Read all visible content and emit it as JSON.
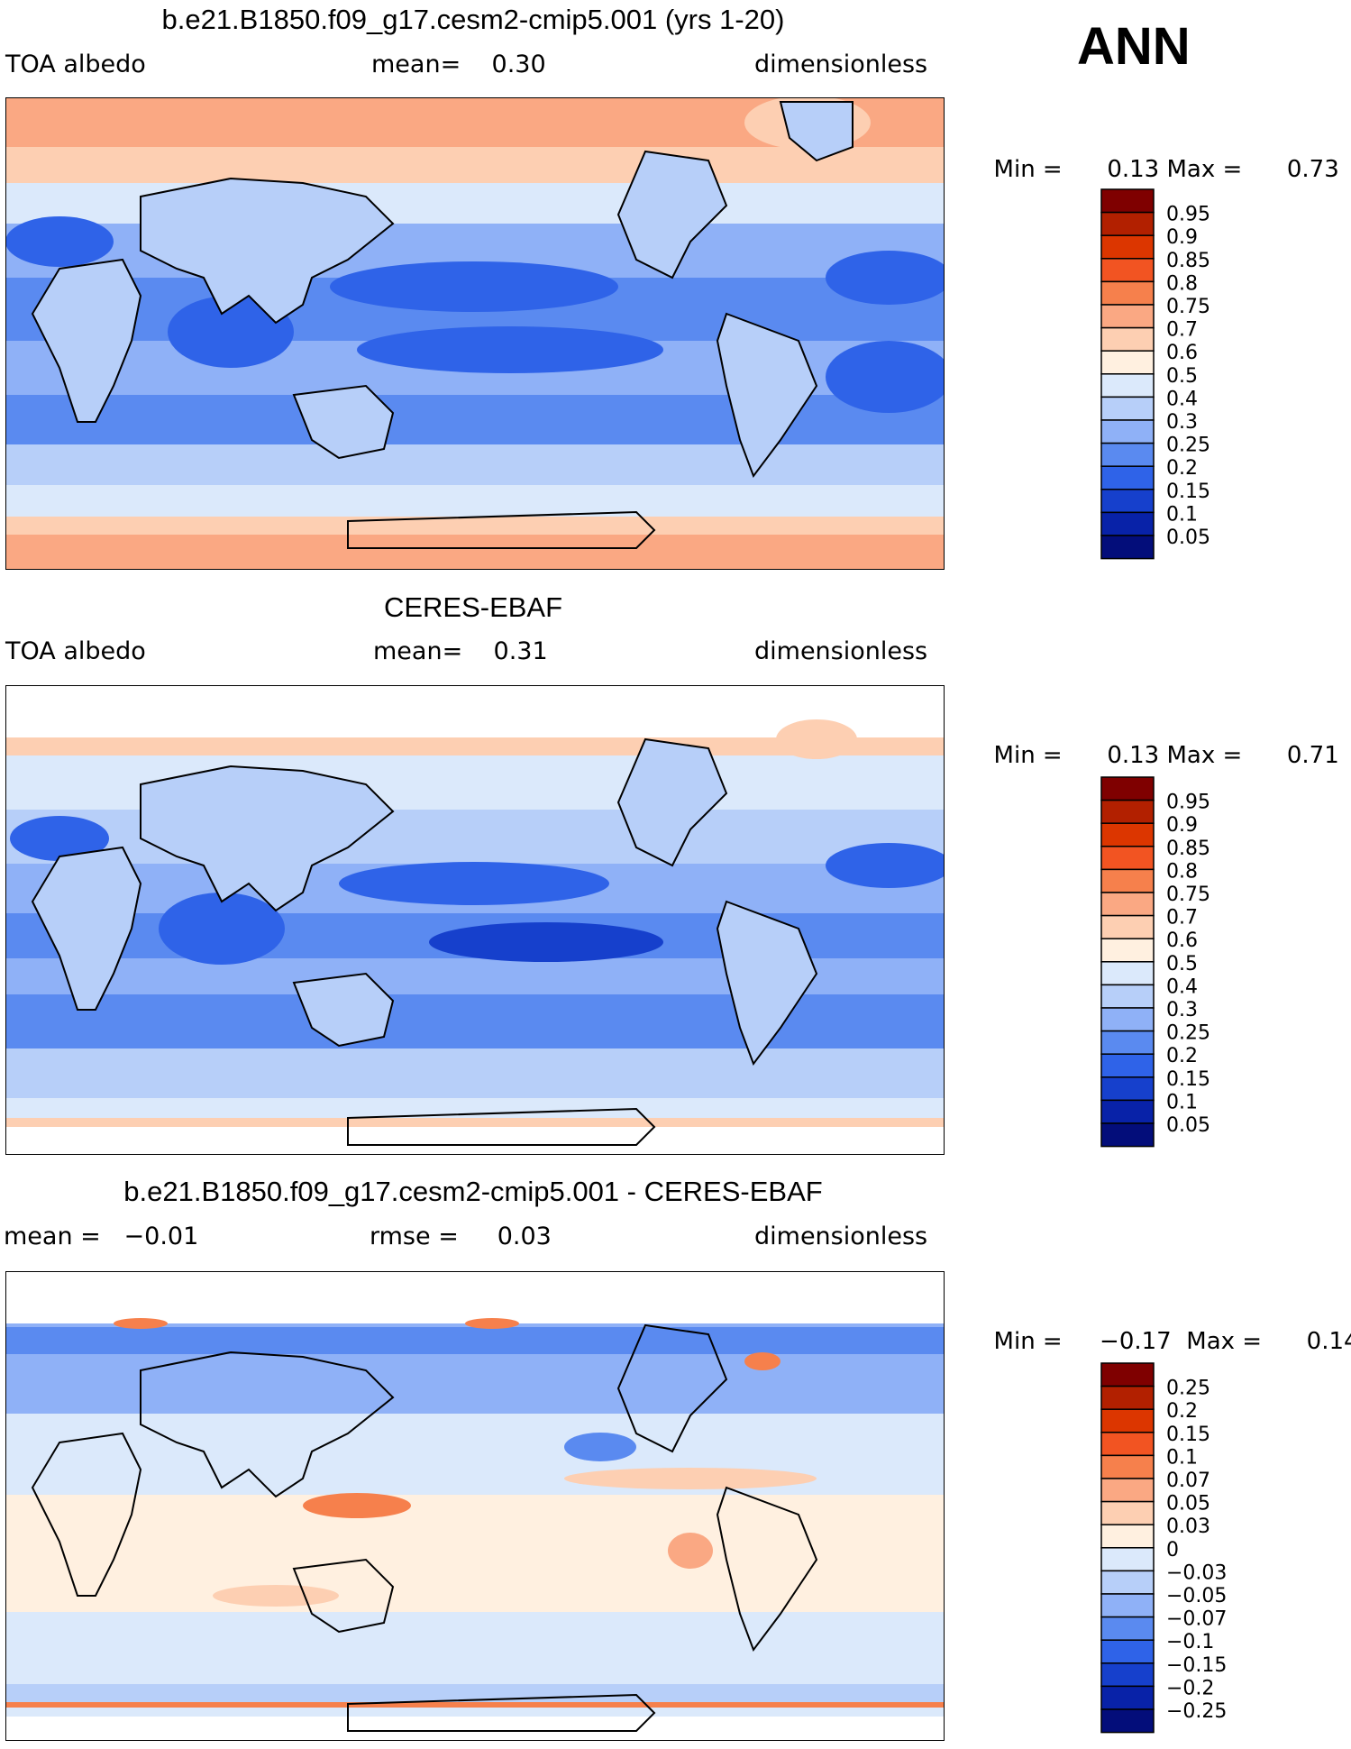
{
  "season": "ANN",
  "panels": [
    {
      "title": "b.e21.B1850.f09_g17.cesm2-cmip5.001 (yrs 1-20)",
      "left_label": "TOA albedo",
      "center_label": "mean=    0.30",
      "right_label": "dimensionless",
      "min_label": "Min =",
      "min_value": "0.13",
      "max_label": "Max =",
      "max_value": "0.73"
    },
    {
      "title": "CERES-EBAF",
      "left_label": "TOA albedo",
      "center_label": "mean=    0.31",
      "right_label": "dimensionless",
      "min_label": "Min =",
      "min_value": "0.13",
      "max_label": "Max =",
      "max_value": "0.71"
    },
    {
      "title": "b.e21.B1850.f09_g17.cesm2-cmip5.001 - CERES-EBAF",
      "left_label": "mean =   −0.01",
      "center_label": "rmse =     0.03",
      "right_label": "dimensionless",
      "min_label": "Min =",
      "min_value": "−0.17",
      "max_label": "Max =",
      "max_value": "0.14"
    }
  ],
  "chart_data": [
    {
      "type": "heatmap",
      "title": "b.e21.B1850.f09_g17.cesm2-cmip5.001 (yrs 1-20)",
      "variable": "TOA albedo",
      "units": "dimensionless",
      "mean": 0.3,
      "min": 0.13,
      "max": 0.73,
      "colorbar_levels": [
        "0.95",
        "0.9",
        "0.85",
        "0.8",
        "0.75",
        "0.7",
        "0.6",
        "0.5",
        "0.4",
        "0.3",
        "0.25",
        "0.2",
        "0.15",
        "0.1",
        "0.05"
      ],
      "colorbar_colors": [
        "#7f0000",
        "#b22000",
        "#dc3600",
        "#f25422",
        "#f6804c",
        "#faa883",
        "#fdcfb2",
        "#fff0e0",
        "#dbe9fb",
        "#b7cff9",
        "#8fb1f7",
        "#5a8af0",
        "#2f63e8",
        "#1640cc",
        "#0822a8",
        "#030d7a"
      ]
    },
    {
      "type": "heatmap",
      "title": "CERES-EBAF",
      "variable": "TOA albedo",
      "units": "dimensionless",
      "mean": 0.31,
      "min": 0.13,
      "max": 0.71,
      "colorbar_levels": [
        "0.95",
        "0.9",
        "0.85",
        "0.8",
        "0.75",
        "0.7",
        "0.6",
        "0.5",
        "0.4",
        "0.3",
        "0.25",
        "0.2",
        "0.15",
        "0.1",
        "0.05"
      ],
      "colorbar_colors": [
        "#7f0000",
        "#b22000",
        "#dc3600",
        "#f25422",
        "#f6804c",
        "#faa883",
        "#fdcfb2",
        "#fff0e0",
        "#dbe9fb",
        "#b7cff9",
        "#8fb1f7",
        "#5a8af0",
        "#2f63e8",
        "#1640cc",
        "#0822a8",
        "#030d7a"
      ]
    },
    {
      "type": "heatmap",
      "title": "b.e21.B1850.f09_g17.cesm2-cmip5.001 - CERES-EBAF",
      "units": "dimensionless",
      "mean": -0.01,
      "rmse": 0.03,
      "min": -0.17,
      "max": 0.14,
      "colorbar_levels": [
        "0.25",
        "0.2",
        "0.15",
        "0.1",
        "0.07",
        "0.05",
        "0.03",
        "0",
        "−0.03",
        "−0.05",
        "−0.07",
        "−0.1",
        "−0.15",
        "−0.2",
        "−0.25"
      ],
      "colorbar_colors": [
        "#7f0000",
        "#b22000",
        "#dc3600",
        "#f25422",
        "#f6804c",
        "#faa883",
        "#fdcfb2",
        "#fff0e0",
        "#dbe9fb",
        "#b7cff9",
        "#8fb1f7",
        "#5a8af0",
        "#2f63e8",
        "#1640cc",
        "#0822a8",
        "#030d7a"
      ]
    }
  ]
}
